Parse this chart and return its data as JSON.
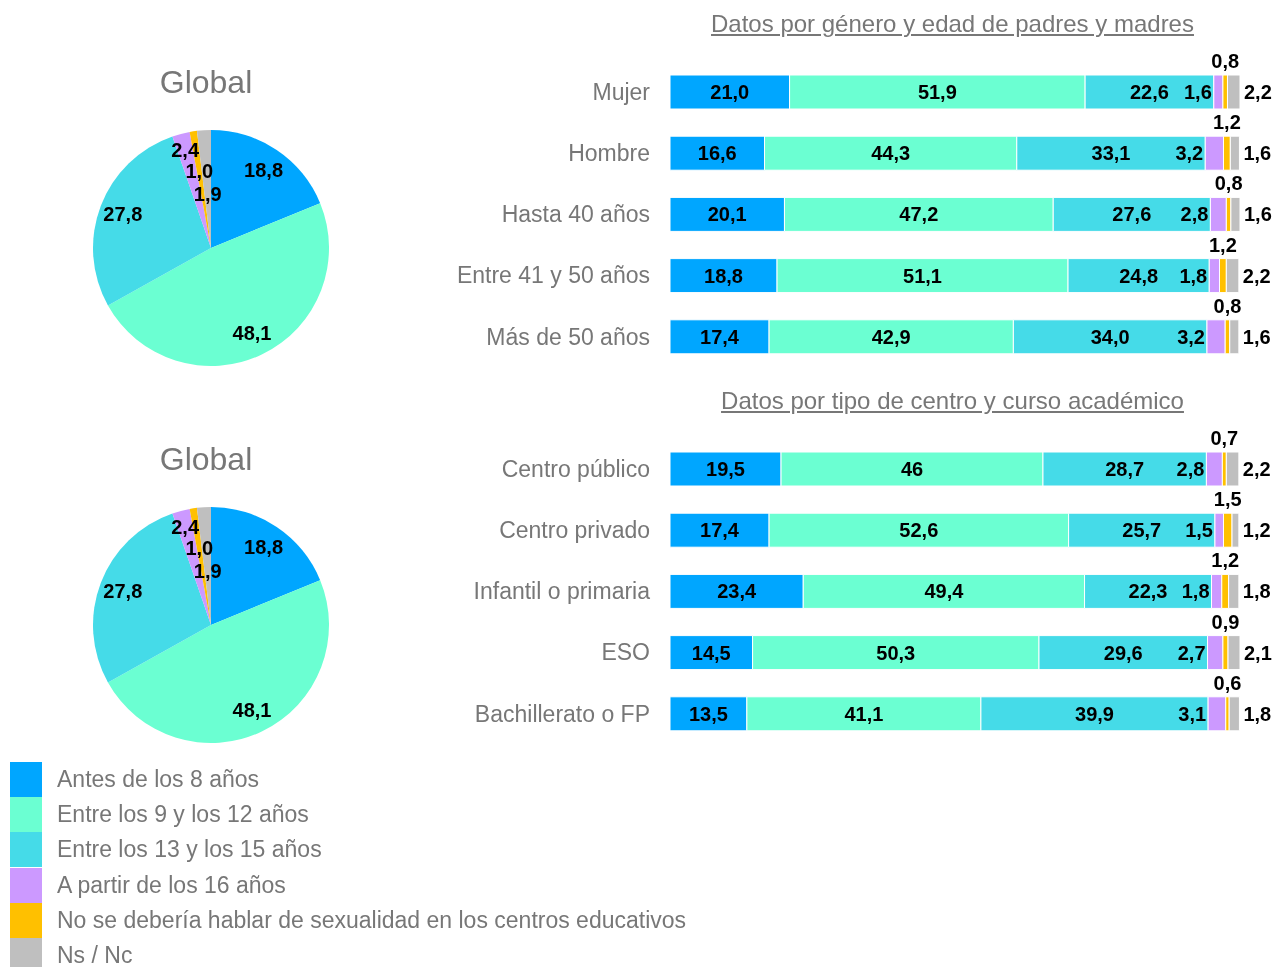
{
  "chart_data": [
    {
      "type": "pie",
      "title": "Global",
      "categories": [
        "Antes de los 8 años",
        "Entre los 9 y los 12 años",
        "Entre los 13 y los 15 años",
        "A partir de los 16 años",
        "No se debería hablar de sexualidad en los centros educativos",
        "Ns / Nc"
      ],
      "values": [
        18.8,
        48.1,
        27.8,
        2.4,
        1.0,
        1.9
      ],
      "value_labels": [
        "18,8",
        "48,1",
        "27,8",
        "2,4",
        "1,0",
        "1,9"
      ],
      "colors": [
        "#00a6ff",
        "#6bffd2",
        "#45dbe8",
        "#cc99ff",
        "#ffc000",
        "#bfbfbf"
      ],
      "legend": "bottom"
    },
    {
      "type": "bar",
      "orientation": "horizontal",
      "stacked": true,
      "title": "Datos por género y edad de padres y madres",
      "categories": [
        "Mujer",
        "Hombre",
        "Hasta 40 años",
        "Entre 41 y 50 años",
        "Más de 50 años"
      ],
      "xlim": [
        0,
        100.1
      ],
      "tick_labels": "y",
      "series": [
        {
          "color": "#00a6ff",
          "values": [
            21.0,
            16.6,
            20.1,
            18.8,
            17.4
          ],
          "value_labels": [
            "21,0",
            "16,6",
            "20,1",
            "18,8",
            "17,4"
          ]
        },
        {
          "color": "#6bffd2",
          "values": [
            51.9,
            44.3,
            47.2,
            51.1,
            42.9
          ],
          "value_labels": [
            "51,9",
            "44,3",
            "47,2",
            "51,1",
            "42,9"
          ]
        },
        {
          "color": "#45dbe8",
          "values": [
            22.6,
            33.1,
            27.6,
            24.8,
            34.0
          ],
          "value_labels": [
            "22,6",
            "33,1",
            "27,6",
            "24,8",
            "34,0"
          ]
        },
        {
          "color": "#cc99ff",
          "values": [
            1.6,
            3.2,
            2.8,
            1.8,
            3.2
          ],
          "value_labels": [
            "1,6",
            "3,2",
            "2,8",
            "1,8",
            "3,2"
          ]
        },
        {
          "color": "#ffc000",
          "values": [
            0.8,
            1.2,
            0.8,
            1.2,
            0.8
          ],
          "value_labels": [
            "0,8",
            "1,2",
            "0,8",
            "1,2",
            "0,8"
          ]
        },
        {
          "color": "#bfbfbf",
          "values": [
            2.2,
            1.6,
            1.6,
            2.2,
            1.6
          ],
          "value_labels": [
            "2,2",
            "1,6",
            "1,6",
            "2,2",
            "1,6"
          ]
        }
      ]
    },
    {
      "type": "pie",
      "title": "Global",
      "categories": [
        null,
        null,
        null,
        null,
        null,
        null
      ],
      "values": [
        18.8,
        48.1,
        27.8,
        2.4,
        1.0,
        1.9
      ],
      "value_labels": [
        "18,8",
        "48,1",
        "27,8",
        "2,4",
        "1,0",
        "1,9"
      ],
      "colors": [
        "#00a6ff",
        "#6bffd2",
        "#45dbe8",
        "#cc99ff",
        "#ffc000",
        "#bfbfbf"
      ]
    },
    {
      "type": "bar",
      "orientation": "horizontal",
      "stacked": true,
      "title": "Datos por tipo de centro y curso académico",
      "categories": [
        "Centro público",
        "Centro privado",
        "Infantil o primaria",
        "ESO",
        "Bachillerato o FP"
      ],
      "xlim": [
        0,
        100.1
      ],
      "tick_labels": "y",
      "series": [
        {
          "color": "#00a6ff",
          "values": [
            19.5,
            17.4,
            23.4,
            14.5,
            13.5
          ],
          "value_labels": [
            "19,5",
            "17,4",
            "23,4",
            "14,5",
            "13,5"
          ]
        },
        {
          "color": "#6bffd2",
          "values": [
            46,
            52.6,
            49.4,
            50.3,
            41.1
          ],
          "value_labels": [
            "46",
            "52,6",
            "49,4",
            "50,3",
            "41,1"
          ]
        },
        {
          "color": "#45dbe8",
          "values": [
            28.7,
            25.7,
            22.3,
            29.6,
            39.9
          ],
          "value_labels": [
            "28,7",
            "25,7",
            "22,3",
            "29,6",
            "39,9"
          ]
        },
        {
          "color": "#cc99ff",
          "values": [
            2.8,
            1.5,
            1.8,
            2.7,
            3.1
          ],
          "value_labels": [
            "2,8",
            "1,5",
            "1,8",
            "2,7",
            "3,1"
          ]
        },
        {
          "color": "#ffc000",
          "values": [
            0.7,
            1.5,
            1.2,
            0.9,
            0.6
          ],
          "value_labels": [
            "0,7",
            "1,5",
            "1,2",
            "0,9",
            "0,6"
          ]
        },
        {
          "color": "#bfbfbf",
          "values": [
            2.2,
            1.2,
            1.8,
            2.1,
            1.8
          ],
          "value_labels": [
            "2,2",
            "1,2",
            "1,8",
            "2,1",
            "1,8"
          ]
        }
      ]
    }
  ]
}
